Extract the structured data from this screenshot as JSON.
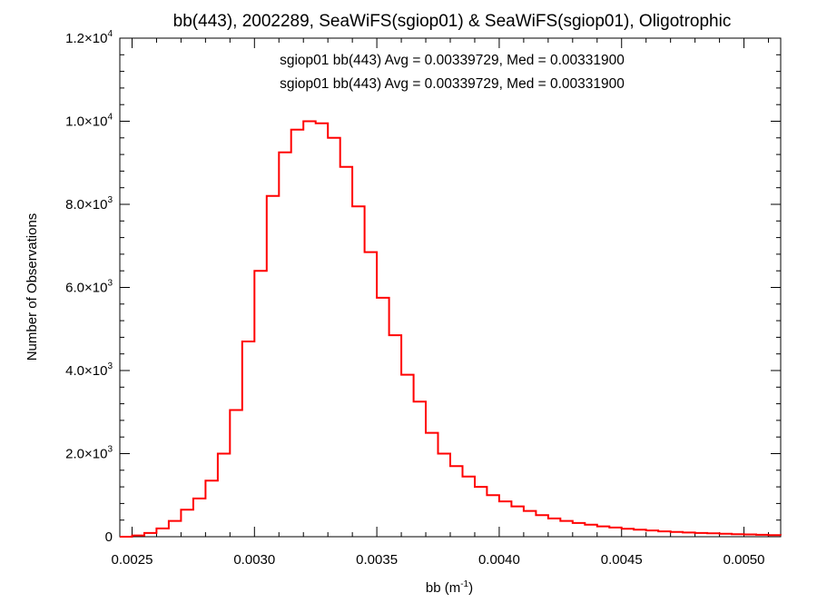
{
  "chart_data": {
    "type": "line",
    "title": "bb(443), 2002289, SeaWiFS(sgiop01) & SeaWiFS(sgiop01), Oligotrophic",
    "xlabel": {
      "base": "bb (m",
      "sup": "-1",
      "close": ")"
    },
    "ylabel": "Number of Observations",
    "xlim": [
      0.00245,
      0.00515
    ],
    "ylim": [
      0,
      12000
    ],
    "x_ticks": [
      {
        "value": 0.0025,
        "label": "0.0025"
      },
      {
        "value": 0.003,
        "label": "0.0030"
      },
      {
        "value": 0.0035,
        "label": "0.0035"
      },
      {
        "value": 0.004,
        "label": "0.0040"
      },
      {
        "value": 0.0045,
        "label": "0.0045"
      },
      {
        "value": 0.005,
        "label": "0.0050"
      }
    ],
    "y_ticks": [
      {
        "value": 0,
        "mant": "0",
        "exp": ""
      },
      {
        "value": 2000,
        "mant": "2.0×10",
        "exp": "3"
      },
      {
        "value": 4000,
        "mant": "4.0×10",
        "exp": "3"
      },
      {
        "value": 6000,
        "mant": "6.0×10",
        "exp": "3"
      },
      {
        "value": 8000,
        "mant": "8.0×10",
        "exp": "3"
      },
      {
        "value": 10000,
        "mant": "1.0×10",
        "exp": "4"
      },
      {
        "value": 12000,
        "mant": "1.2×10",
        "exp": "4"
      }
    ],
    "legend": [
      {
        "text": "sgiop01 bb(443) Avg = 0.00339729, Med = 0.00331900",
        "color": "#000000"
      },
      {
        "text": "sgiop01 bb(443) Avg = 0.00339729, Med = 0.00331900",
        "color": "#ff0000"
      }
    ],
    "series": [
      {
        "color": "#ff0000",
        "style": "histogram-step",
        "points": [
          [
            0.00245,
            0
          ],
          [
            0.0025,
            30
          ],
          [
            0.00255,
            90
          ],
          [
            0.0026,
            200
          ],
          [
            0.00265,
            380
          ],
          [
            0.0027,
            650
          ],
          [
            0.00275,
            920
          ],
          [
            0.0028,
            1350
          ],
          [
            0.00285,
            2000
          ],
          [
            0.0029,
            3050
          ],
          [
            0.00295,
            4700
          ],
          [
            0.003,
            6400
          ],
          [
            0.00305,
            8200
          ],
          [
            0.0031,
            9250
          ],
          [
            0.00315,
            9800
          ],
          [
            0.0032,
            10000
          ],
          [
            0.00325,
            9950
          ],
          [
            0.0033,
            9600
          ],
          [
            0.00335,
            8900
          ],
          [
            0.0034,
            7950
          ],
          [
            0.00345,
            6850
          ],
          [
            0.0035,
            5750
          ],
          [
            0.00355,
            4850
          ],
          [
            0.0036,
            3900
          ],
          [
            0.00365,
            3250
          ],
          [
            0.0037,
            2500
          ],
          [
            0.00375,
            2000
          ],
          [
            0.0038,
            1700
          ],
          [
            0.00385,
            1450
          ],
          [
            0.0039,
            1200
          ],
          [
            0.00395,
            1000
          ],
          [
            0.004,
            850
          ],
          [
            0.00405,
            730
          ],
          [
            0.0041,
            620
          ],
          [
            0.00415,
            520
          ],
          [
            0.0042,
            440
          ],
          [
            0.00425,
            380
          ],
          [
            0.0043,
            330
          ],
          [
            0.00435,
            290
          ],
          [
            0.0044,
            250
          ],
          [
            0.00445,
            220
          ],
          [
            0.0045,
            190
          ],
          [
            0.00455,
            170
          ],
          [
            0.0046,
            150
          ],
          [
            0.00465,
            130
          ],
          [
            0.0047,
            115
          ],
          [
            0.00475,
            100
          ],
          [
            0.0048,
            90
          ],
          [
            0.00485,
            80
          ],
          [
            0.0049,
            70
          ],
          [
            0.00495,
            60
          ],
          [
            0.005,
            55
          ],
          [
            0.00505,
            45
          ],
          [
            0.0051,
            40
          ],
          [
            0.00515,
            35
          ]
        ]
      }
    ]
  }
}
